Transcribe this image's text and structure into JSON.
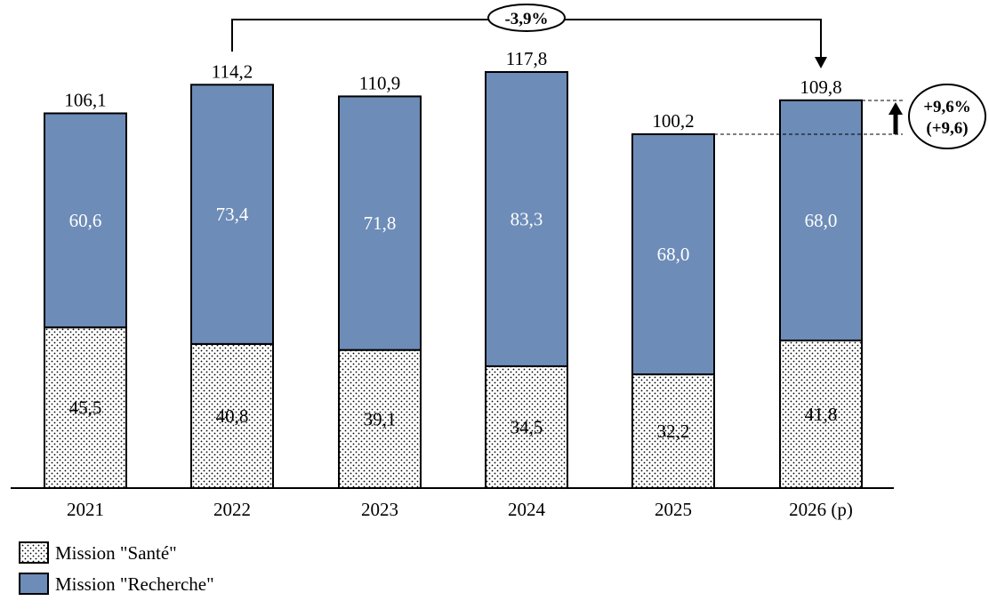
{
  "chart_data": {
    "type": "bar",
    "stacked": true,
    "categories": [
      "2021",
      "2022",
      "2023",
      "2024",
      "2025",
      "2026 (p)"
    ],
    "series": [
      {
        "name": "Mission \"Santé\"",
        "values": [
          45.5,
          40.8,
          39.1,
          34.5,
          32.2,
          41.8
        ],
        "labels": [
          "45,5",
          "40,8",
          "39,1",
          "34,5",
          "32,2",
          "41,8"
        ],
        "color": "#ffffff",
        "pattern": "dots"
      },
      {
        "name": "Mission \"Recherche\"",
        "values": [
          60.6,
          73.4,
          71.8,
          83.3,
          68.0,
          68.0
        ],
        "labels": [
          "60,6",
          "73,4",
          "71,8",
          "83,3",
          "68,0",
          "68,0"
        ],
        "color": "#6d8cb8"
      }
    ],
    "totals": [
      106.1,
      114.2,
      110.9,
      117.8,
      100.2,
      109.8
    ],
    "total_labels": [
      "106,1",
      "114,2",
      "110,9",
      "117,8",
      "100,2",
      "109,8"
    ],
    "ylim": [
      0,
      117.8
    ],
    "legend": "bottom-left",
    "grid": false,
    "annotations": {
      "change_2022_2026": "-3,9%",
      "change_2025_2026_pct": "+9,6%",
      "change_2025_2026_abs": "(+9,6)"
    }
  }
}
